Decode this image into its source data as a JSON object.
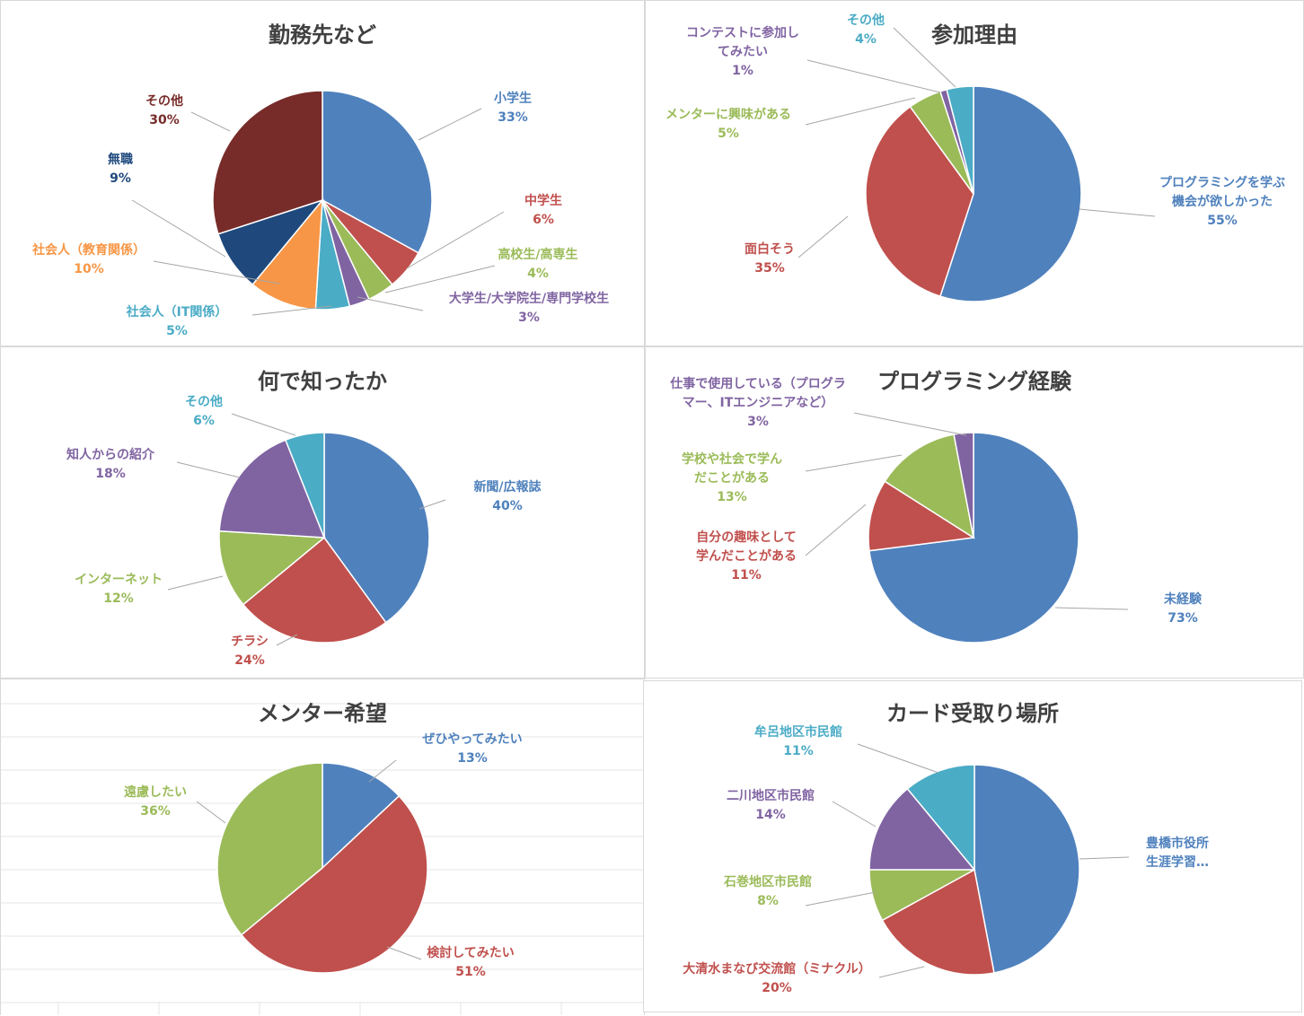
{
  "chart_data": [
    {
      "type": "pie",
      "title": "勤務先など",
      "slices": [
        {
          "label": [
            "小学生"
          ],
          "pct": "33%",
          "value": 33,
          "color": "#4F81BD"
        },
        {
          "label": [
            "中学生"
          ],
          "pct": "6%",
          "value": 6,
          "color": "#C0504D"
        },
        {
          "label": [
            "高校生/高専生"
          ],
          "pct": "4%",
          "value": 4,
          "color": "#9BBB59"
        },
        {
          "label": [
            "大学生/大学院生/専門学校生"
          ],
          "pct": "3%",
          "value": 3,
          "color": "#8064A2"
        },
        {
          "label": [
            "社会人（IT関係）"
          ],
          "pct": "5%",
          "value": 5,
          "color": "#4BACC6"
        },
        {
          "label": [
            "社会人（教育関係）"
          ],
          "pct": "10%",
          "value": 10,
          "color": "#F79646"
        },
        {
          "label": [
            "無職"
          ],
          "pct": "9%",
          "value": 9,
          "color": "#1F497D"
        },
        {
          "label": [
            "その他"
          ],
          "pct": "30%",
          "value": 30,
          "color": "#772C2A"
        }
      ]
    },
    {
      "type": "pie",
      "title": "参加理由",
      "slices": [
        {
          "label": [
            "プログラミングを学ぶ",
            "機会が欲しかった"
          ],
          "pct": "55%",
          "value": 55,
          "color": "#4F81BD"
        },
        {
          "label": [
            "面白そう"
          ],
          "pct": "35%",
          "value": 35,
          "color": "#C0504D"
        },
        {
          "label": [
            "メンターに興味がある"
          ],
          "pct": "5%",
          "value": 5,
          "color": "#9BBB59"
        },
        {
          "label": [
            "コンテストに参加し",
            "てみたい"
          ],
          "pct": "1%",
          "value": 1,
          "color": "#8064A2"
        },
        {
          "label": [
            "その他"
          ],
          "pct": "4%",
          "value": 4,
          "color": "#4BACC6"
        }
      ]
    },
    {
      "type": "pie",
      "title": "何で知ったか",
      "slices": [
        {
          "label": [
            "新聞/広報誌"
          ],
          "pct": "40%",
          "value": 40,
          "color": "#4F81BD"
        },
        {
          "label": [
            "チラシ"
          ],
          "pct": "24%",
          "value": 24,
          "color": "#C0504D"
        },
        {
          "label": [
            "インターネット"
          ],
          "pct": "12%",
          "value": 12,
          "color": "#9BBB59"
        },
        {
          "label": [
            "知人からの紹介"
          ],
          "pct": "18%",
          "value": 18,
          "color": "#8064A2"
        },
        {
          "label": [
            "その他"
          ],
          "pct": "6%",
          "value": 6,
          "color": "#4BACC6"
        }
      ]
    },
    {
      "type": "pie",
      "title": "プログラミング経験",
      "slices": [
        {
          "label": [
            "未経験"
          ],
          "pct": "73%",
          "value": 73,
          "color": "#4F81BD"
        },
        {
          "label": [
            "自分の趣味として",
            "学んだことがある"
          ],
          "pct": "11%",
          "value": 11,
          "color": "#C0504D"
        },
        {
          "label": [
            "学校や社会で学ん",
            "だことがある"
          ],
          "pct": "13%",
          "value": 13,
          "color": "#9BBB59"
        },
        {
          "label": [
            "仕事で使用している（プログラ",
            "マー、ITエンジニアなど）"
          ],
          "pct": "3%",
          "value": 3,
          "color": "#8064A2"
        }
      ]
    },
    {
      "type": "pie",
      "title": "メンター希望",
      "slices": [
        {
          "label": [
            "ぜひやってみたい"
          ],
          "pct": "13%",
          "value": 13,
          "color": "#4F81BD"
        },
        {
          "label": [
            "検討してみたい"
          ],
          "pct": "51%",
          "value": 51,
          "color": "#C0504D"
        },
        {
          "label": [
            "遠慮したい"
          ],
          "pct": "36%",
          "value": 36,
          "color": "#9BBB59"
        }
      ]
    },
    {
      "type": "pie",
      "title": "カード受取り場所",
      "slices": [
        {
          "label": [
            "豊橋市役所",
            "生涯学習…"
          ],
          "pct": "",
          "value": 47,
          "color": "#4F81BD"
        },
        {
          "label": [
            "大清水まなび交流館（ミナクル）"
          ],
          "pct": "20%",
          "value": 20,
          "color": "#C0504D"
        },
        {
          "label": [
            "石巻地区市民館"
          ],
          "pct": "8%",
          "value": 8,
          "color": "#9BBB59"
        },
        {
          "label": [
            "二川地区市民館"
          ],
          "pct": "14%",
          "value": 14,
          "color": "#8064A2"
        },
        {
          "label": [
            "牟呂地区市民館"
          ],
          "pct": "11%",
          "value": 11,
          "color": "#4BACC6"
        }
      ]
    }
  ]
}
